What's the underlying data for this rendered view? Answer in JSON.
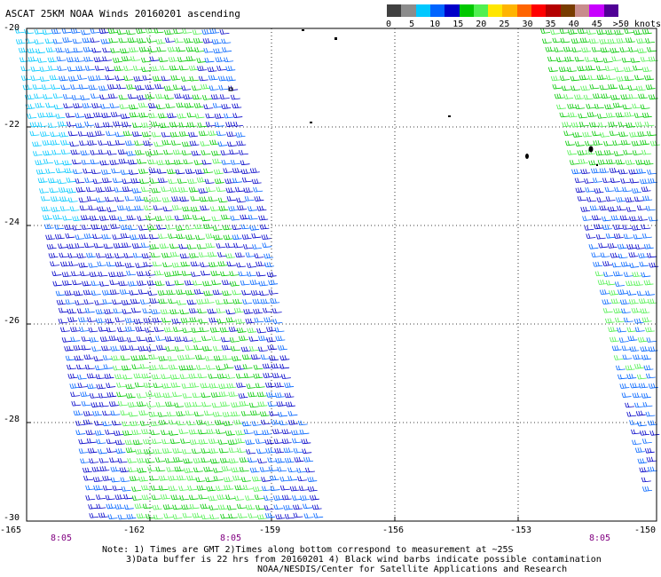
{
  "title": "ASCAT 25KM NOAA Winds 20160201 ascending",
  "colorbar": {
    "colors": [
      "#404040",
      "#8c8c8c",
      "#00c8ff",
      "#0064ff",
      "#0000c8",
      "#00c800",
      "#50f050",
      "#ffe600",
      "#ffb400",
      "#ff6400",
      "#ff0000",
      "#b40000",
      "#783c00",
      "#c88c8c",
      "#c800ff",
      "#500096"
    ],
    "labels": [
      "0",
      "5",
      "10",
      "15",
      "20",
      "25",
      "30",
      "35",
      "40",
      "45",
      ">50 knots"
    ]
  },
  "axes": {
    "y_labels": [
      "-20",
      "-22",
      "-24",
      "-26",
      "-28",
      "-30"
    ],
    "x_labels": [
      "-165",
      "-162",
      "-159",
      "-156",
      "-153",
      "-150"
    ],
    "lat_range": [
      -30,
      -20
    ],
    "lon_range": [
      -165,
      -150
    ]
  },
  "pass_times": [
    "8:05",
    "8:05",
    "8:05"
  ],
  "notes": {
    "line1": "Note: 1) Times are GMT 2)Times along bottom correspond to measurement at ~25S",
    "line2": "3)Data buffer is 22 hrs from 20160201 4) Black wind barbs indicate possible contamination",
    "line3": "NOAA/NESDIS/Center for Satellite Applications and Research"
  }
}
